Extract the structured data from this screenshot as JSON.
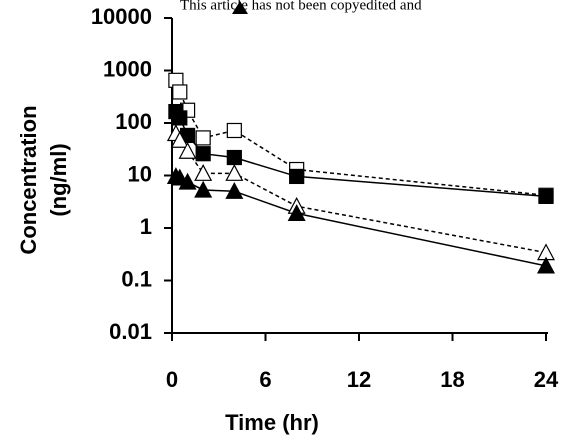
{
  "chart_data": {
    "type": "line",
    "annotation": "This article has not been copyedited and",
    "xlabel": "Time (hr)",
    "ylabel": [
      "Concentration",
      "(ng/ml)"
    ],
    "x": [
      0.25,
      0.5,
      1,
      2,
      4,
      8,
      24
    ],
    "xlim": [
      0,
      24
    ],
    "xticks": [
      0,
      6,
      12,
      18,
      24
    ],
    "ylim": [
      0.01,
      10000
    ],
    "yticks": [
      10000,
      1000,
      100,
      10,
      1,
      0.1,
      0.01
    ],
    "yscale": "log",
    "series": [
      {
        "color": "#000000",
        "marker": "square",
        "filled": false,
        "dashed": true,
        "values": [
          650,
          390,
          175,
          52,
          72,
          13,
          4.2
        ]
      },
      {
        "color": "#000000",
        "marker": "square",
        "filled": true,
        "dashed": false,
        "values": [
          165,
          125,
          58,
          26,
          22,
          9.6,
          4
        ]
      },
      {
        "color": "#000000",
        "marker": "triangle",
        "filled": false,
        "dashed": true,
        "values": [
          63,
          47,
          29,
          11,
          11,
          2.6,
          0.34
        ]
      },
      {
        "color": "#000000",
        "marker": "triangle",
        "filled": true,
        "dashed": false,
        "values": [
          9.6,
          9,
          7.5,
          5.3,
          5,
          1.9,
          0.19
        ]
      }
    ]
  }
}
